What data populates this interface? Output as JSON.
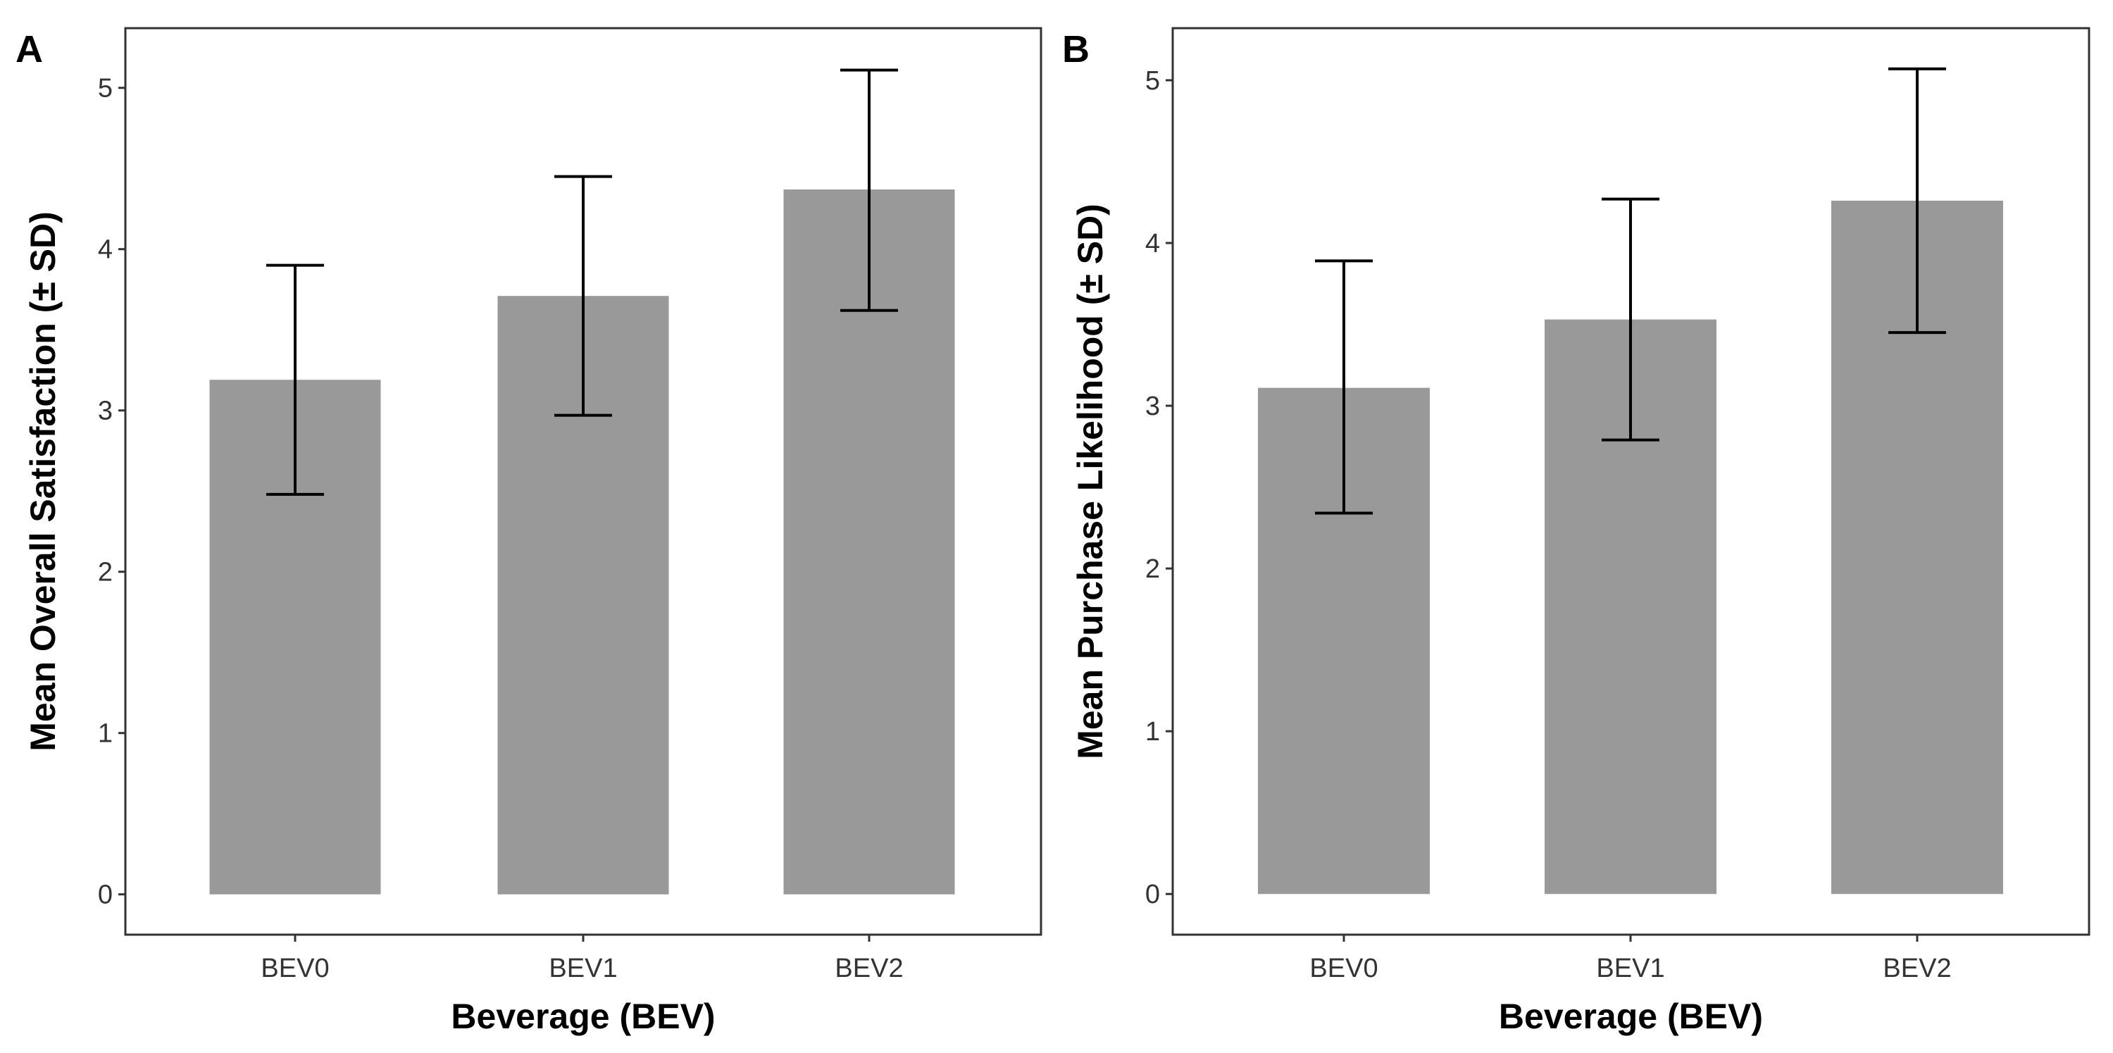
{
  "colors": {
    "bar": "#999999",
    "errorbar": "#000000",
    "frame": "#333333"
  },
  "chart_data": [
    {
      "panel_label": "A",
      "type": "bar",
      "categories": [
        "BEV0",
        "BEV1",
        "BEV2"
      ],
      "values": [
        3.19,
        3.71,
        4.37
      ],
      "error_low": [
        2.48,
        2.97,
        3.62
      ],
      "error_high": [
        3.9,
        4.45,
        5.11
      ],
      "xlabel": "Beverage (BEV)",
      "ylabel": "Mean Overall Satisfaction (± SD)",
      "ylim": [
        -0.25,
        5.37
      ],
      "yticks": [
        0,
        1,
        2,
        3,
        4,
        5
      ],
      "grid": false
    },
    {
      "panel_label": "B",
      "type": "bar",
      "categories": [
        "BEV0",
        "BEV1",
        "BEV2"
      ],
      "values": [
        3.11,
        3.53,
        4.26
      ],
      "error_low": [
        2.34,
        2.79,
        3.45
      ],
      "error_high": [
        3.89,
        4.27,
        5.07
      ],
      "xlabel": "Beverage (BEV)",
      "ylabel": "Mean Purchase Likelihood (± SD)",
      "ylim": [
        -0.25,
        5.32
      ],
      "yticks": [
        0,
        1,
        2,
        3,
        4,
        5
      ],
      "grid": false
    }
  ]
}
